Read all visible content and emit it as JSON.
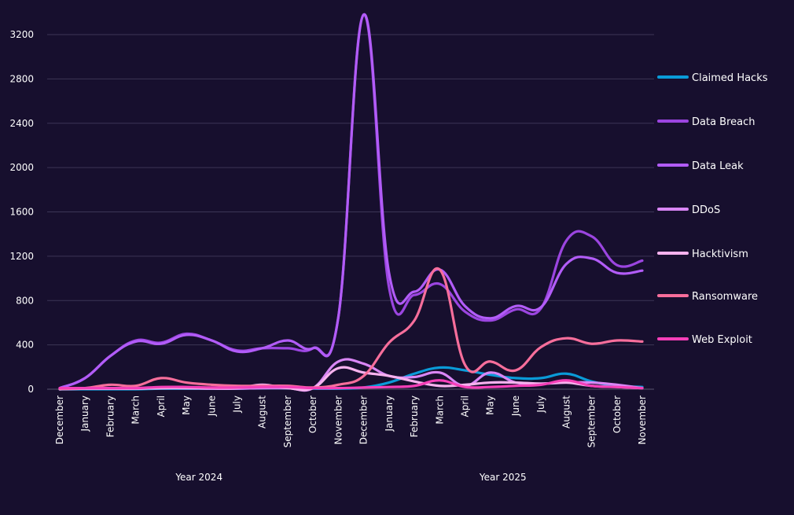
{
  "chart_data": {
    "type": "line",
    "title": "",
    "xlabel": "",
    "ylabel": "",
    "ylim": [
      0,
      3200
    ],
    "yticks": [
      0,
      400,
      800,
      1200,
      1600,
      2000,
      2400,
      2800,
      3200
    ],
    "grid": true,
    "legend_position": "right",
    "categories": [
      "December",
      "January",
      "February",
      "March",
      "April",
      "May",
      "June",
      "July",
      "August",
      "September",
      "October",
      "November",
      "December",
      "January",
      "February",
      "March",
      "April",
      "May",
      "June",
      "July",
      "August",
      "September",
      "October",
      "November"
    ],
    "groups": [
      {
        "label": "Year 2024",
        "from": 0,
        "to": 11
      },
      {
        "label": "Year 2025",
        "from": 12,
        "to": 23
      }
    ],
    "series": [
      {
        "name": "Claimed Hacks",
        "color": "#0a9bd8",
        "values": [
          0,
          0,
          0,
          0,
          5,
          5,
          5,
          5,
          10,
          10,
          5,
          5,
          15,
          60,
          140,
          195,
          170,
          130,
          100,
          100,
          140,
          70,
          30,
          20
        ]
      },
      {
        "name": "Data Breach",
        "color": "#9b45e0",
        "values": [
          10,
          100,
          300,
          440,
          420,
          500,
          440,
          350,
          370,
          370,
          370,
          650,
          3380,
          920,
          850,
          950,
          700,
          620,
          720,
          730,
          1340,
          1380,
          1120,
          1160
        ]
      },
      {
        "name": "Data Leak",
        "color": "#b25cf8",
        "values": [
          10,
          100,
          300,
          430,
          410,
          490,
          440,
          340,
          370,
          440,
          370,
          650,
          3380,
          1050,
          880,
          1080,
          750,
          640,
          750,
          740,
          1130,
          1180,
          1050,
          1070
        ]
      },
      {
        "name": "DDoS",
        "color": "#d986f5",
        "values": [
          0,
          5,
          5,
          5,
          10,
          10,
          5,
          5,
          10,
          10,
          10,
          250,
          230,
          120,
          110,
          150,
          30,
          150,
          60,
          50,
          60,
          60,
          40,
          10
        ]
      },
      {
        "name": "Hacktivism",
        "color": "#f7b2ee",
        "values": [
          0,
          5,
          5,
          5,
          10,
          10,
          10,
          10,
          40,
          10,
          10,
          190,
          150,
          120,
          70,
          30,
          40,
          60,
          60,
          50,
          60,
          30,
          20,
          10
        ]
      },
      {
        "name": "Ransomware",
        "color": "#f76e9b",
        "values": [
          5,
          10,
          40,
          30,
          100,
          60,
          40,
          30,
          30,
          30,
          15,
          40,
          120,
          420,
          620,
          1080,
          220,
          250,
          170,
          380,
          460,
          410,
          440,
          430
        ]
      },
      {
        "name": "Web Exploit",
        "color": "#f53fb8",
        "values": [
          10,
          10,
          10,
          10,
          20,
          20,
          15,
          15,
          20,
          20,
          10,
          10,
          15,
          20,
          30,
          80,
          20,
          20,
          30,
          40,
          80,
          30,
          20,
          10
        ]
      }
    ]
  }
}
